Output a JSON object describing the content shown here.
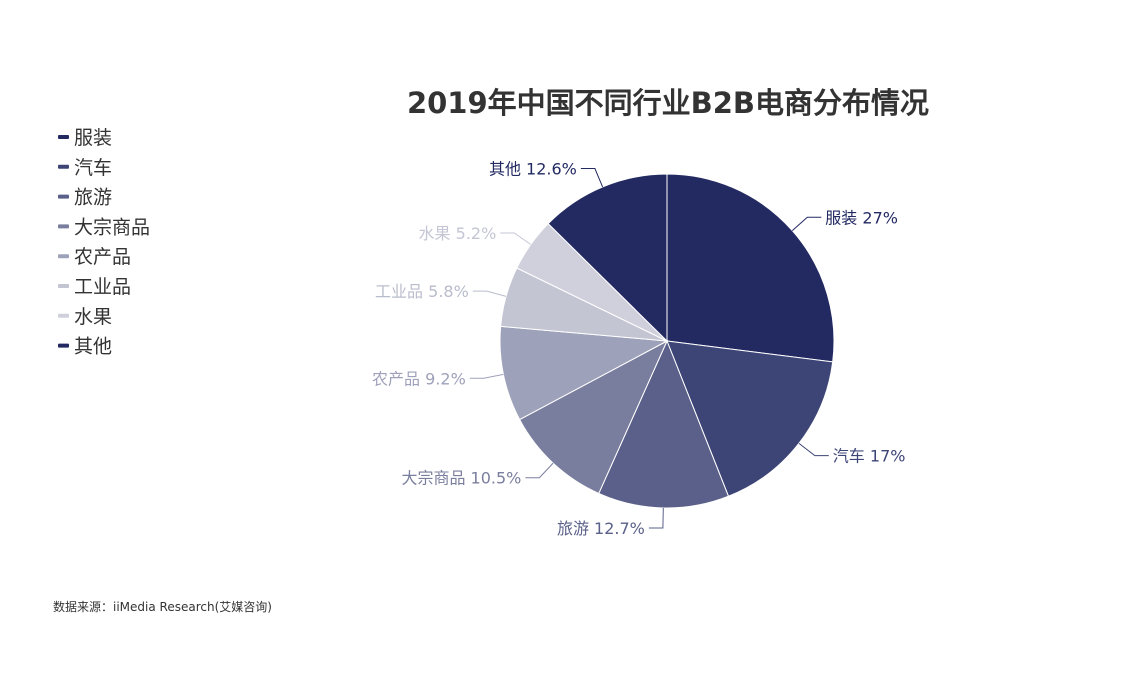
{
  "chart_data": {
    "type": "pie",
    "title": "2019年中国不同行业B2B电商分布情况",
    "categories": [
      "服装",
      "汽车",
      "旅游",
      "大宗商品",
      "农产品",
      "工业品",
      "水果",
      "其他"
    ],
    "values": [
      27,
      17,
      12.7,
      10.5,
      9.2,
      5.8,
      5.2,
      12.6
    ],
    "slice_labels": [
      "服装 27%",
      "汽车 17%",
      "旅游 12.7%",
      "大宗商品 10.5%",
      "农产品 9.2%",
      "工业品 5.8%",
      "水果 5.2%",
      "其他 12.6%"
    ],
    "colors": [
      "#232a62",
      "#3d4576",
      "#5a6089",
      "#7a7e9e",
      "#9ea1ba",
      "#c3c5d3",
      "#cfd0dc",
      "#232a62"
    ],
    "legend_position": "top-left"
  },
  "source": "数据来源：iiMedia Research(艾媒咨询)"
}
